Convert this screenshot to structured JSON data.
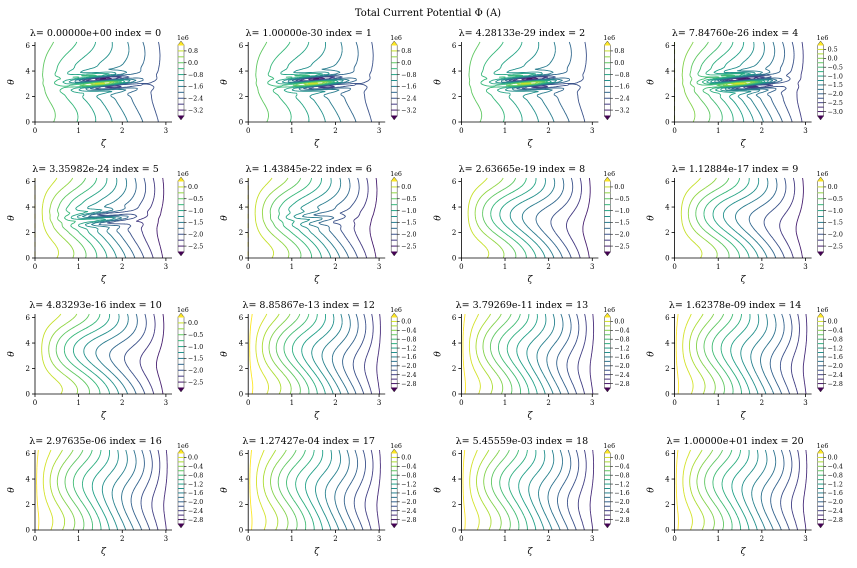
{
  "suptitle": "Total Current Potential Φ (A)",
  "chart_data": [
    {
      "type": "contour",
      "title": "λ=  0.00000e+00 index = 0",
      "xlabel": "ζ",
      "ylabel": "θ",
      "xlim": [
        0,
        3.14
      ],
      "ylim": [
        0,
        6.28
      ],
      "xticks": [
        0,
        1,
        2,
        3
      ],
      "yticks": [
        0,
        2,
        4,
        6
      ],
      "colorbar_scale": "1e6",
      "colorbar_ticks": [
        0.8,
        0.0,
        -0.8,
        -1.6,
        -2.4,
        -3.2
      ]
    },
    {
      "type": "contour",
      "title": "λ=  1.00000e-30 index = 1",
      "xlabel": "ζ",
      "ylabel": "θ",
      "xlim": [
        0,
        3.14
      ],
      "ylim": [
        0,
        6.28
      ],
      "xticks": [
        0,
        1,
        2,
        3
      ],
      "yticks": [
        0,
        2,
        4,
        6
      ],
      "colorbar_scale": "1e6",
      "colorbar_ticks": [
        0.8,
        0.0,
        -0.8,
        -1.6,
        -2.4,
        -3.2
      ]
    },
    {
      "type": "contour",
      "title": "λ=  4.28133e-29 index = 2",
      "xlabel": "ζ",
      "ylabel": "θ",
      "xlim": [
        0,
        3.14
      ],
      "ylim": [
        0,
        6.28
      ],
      "xticks": [
        0,
        1,
        2,
        3
      ],
      "yticks": [
        0,
        2,
        4,
        6
      ],
      "colorbar_scale": "1e6",
      "colorbar_ticks": [
        0.8,
        0.0,
        -0.8,
        -1.6,
        -2.4,
        -3.2
      ]
    },
    {
      "type": "contour",
      "title": "λ=  7.84760e-26 index = 4",
      "xlabel": "ζ",
      "ylabel": "θ",
      "xlim": [
        0,
        3.14
      ],
      "ylim": [
        0,
        6.28
      ],
      "xticks": [
        0,
        1,
        2,
        3
      ],
      "yticks": [
        0,
        2,
        4,
        6
      ],
      "colorbar_scale": "1e6",
      "colorbar_ticks": [
        0.5,
        0.0,
        -0.5,
        -1.0,
        -1.5,
        -2.0,
        -2.5,
        -3.0
      ]
    },
    {
      "type": "contour",
      "title": "λ=  3.35982e-24 index = 5",
      "xlabel": "ζ",
      "ylabel": "θ",
      "xlim": [
        0,
        3.14
      ],
      "ylim": [
        0,
        6.28
      ],
      "xticks": [
        0,
        1,
        2,
        3
      ],
      "yticks": [
        0,
        2,
        4,
        6
      ],
      "colorbar_scale": "1e6",
      "colorbar_ticks": [
        0.0,
        -0.5,
        -1.0,
        -1.5,
        -2.0,
        -2.5
      ]
    },
    {
      "type": "contour",
      "title": "λ=  1.43845e-22 index = 6",
      "xlabel": "ζ",
      "ylabel": "θ",
      "xlim": [
        0,
        3.14
      ],
      "ylim": [
        0,
        6.28
      ],
      "xticks": [
        0,
        1,
        2,
        3
      ],
      "yticks": [
        0,
        2,
        4,
        6
      ],
      "colorbar_scale": "1e6",
      "colorbar_ticks": [
        0.0,
        -0.5,
        -1.0,
        -1.5,
        -2.0,
        -2.5
      ]
    },
    {
      "type": "contour",
      "title": "λ=  2.63665e-19 index = 8",
      "xlabel": "ζ",
      "ylabel": "θ",
      "xlim": [
        0,
        3.14
      ],
      "ylim": [
        0,
        6.28
      ],
      "xticks": [
        0,
        1,
        2,
        3
      ],
      "yticks": [
        0,
        2,
        4,
        6
      ],
      "colorbar_scale": "1e6",
      "colorbar_ticks": [
        0.0,
        -0.5,
        -1.0,
        -1.5,
        -2.0,
        -2.5
      ]
    },
    {
      "type": "contour",
      "title": "λ=  1.12884e-17 index = 9",
      "xlabel": "ζ",
      "ylabel": "θ",
      "xlim": [
        0,
        3.14
      ],
      "ylim": [
        0,
        6.28
      ],
      "xticks": [
        0,
        1,
        2,
        3
      ],
      "yticks": [
        0,
        2,
        4,
        6
      ],
      "colorbar_scale": "1e6",
      "colorbar_ticks": [
        0.0,
        -0.5,
        -1.0,
        -1.5,
        -2.0,
        -2.5
      ]
    },
    {
      "type": "contour",
      "title": "λ=  4.83293e-16 index = 10",
      "xlabel": "ζ",
      "ylabel": "θ",
      "xlim": [
        0,
        3.14
      ],
      "ylim": [
        0,
        6.28
      ],
      "xticks": [
        0,
        1,
        2,
        3
      ],
      "yticks": [
        0,
        2,
        4,
        6
      ],
      "colorbar_scale": "1e6",
      "colorbar_ticks": [
        0.0,
        -0.5,
        -1.0,
        -1.5,
        -2.0,
        -2.5
      ]
    },
    {
      "type": "contour",
      "title": "λ=  8.85867e-13 index = 12",
      "xlabel": "ζ",
      "ylabel": "θ",
      "xlim": [
        0,
        3.14
      ],
      "ylim": [
        0,
        6.28
      ],
      "xticks": [
        0,
        1,
        2,
        3
      ],
      "yticks": [
        0,
        2,
        4,
        6
      ],
      "colorbar_scale": "1e6",
      "colorbar_ticks": [
        0.0,
        -0.4,
        -0.8,
        -1.2,
        -1.6,
        -2.0,
        -2.4,
        -2.8
      ]
    },
    {
      "type": "contour",
      "title": "λ=  3.79269e-11 index = 13",
      "xlabel": "ζ",
      "ylabel": "θ",
      "xlim": [
        0,
        3.14
      ],
      "ylim": [
        0,
        6.28
      ],
      "xticks": [
        0,
        1,
        2,
        3
      ],
      "yticks": [
        0,
        2,
        4,
        6
      ],
      "colorbar_scale": "1e6",
      "colorbar_ticks": [
        0.0,
        -0.4,
        -0.8,
        -1.2,
        -1.6,
        -2.0,
        -2.4,
        -2.8
      ]
    },
    {
      "type": "contour",
      "title": "λ=  1.62378e-09 index = 14",
      "xlabel": "ζ",
      "ylabel": "θ",
      "xlim": [
        0,
        3.14
      ],
      "ylim": [
        0,
        6.28
      ],
      "xticks": [
        0,
        1,
        2,
        3
      ],
      "yticks": [
        0,
        2,
        4,
        6
      ],
      "colorbar_scale": "1e6",
      "colorbar_ticks": [
        0.0,
        -0.4,
        -0.8,
        -1.2,
        -1.6,
        -2.0,
        -2.4,
        -2.8
      ]
    },
    {
      "type": "contour",
      "title": "λ=  2.97635e-06 index = 16",
      "xlabel": "ζ",
      "ylabel": "θ",
      "xlim": [
        0,
        3.14
      ],
      "ylim": [
        0,
        6.28
      ],
      "xticks": [
        0,
        1,
        2,
        3
      ],
      "yticks": [
        0,
        2,
        4,
        6
      ],
      "colorbar_scale": "1e6",
      "colorbar_ticks": [
        0.0,
        -0.4,
        -0.8,
        -1.2,
        -1.6,
        -2.0,
        -2.4,
        -2.8
      ]
    },
    {
      "type": "contour",
      "title": "λ=  1.27427e-04 index = 17",
      "xlabel": "ζ",
      "ylabel": "θ",
      "xlim": [
        0,
        3.14
      ],
      "ylim": [
        0,
        6.28
      ],
      "xticks": [
        0,
        1,
        2,
        3
      ],
      "yticks": [
        0,
        2,
        4,
        6
      ],
      "colorbar_scale": "1e6",
      "colorbar_ticks": [
        0.0,
        -0.4,
        -0.8,
        -1.2,
        -1.6,
        -2.0,
        -2.4,
        -2.8
      ]
    },
    {
      "type": "contour",
      "title": "λ=  5.45559e-03 index = 18",
      "xlabel": "ζ",
      "ylabel": "θ",
      "xlim": [
        0,
        3.14
      ],
      "ylim": [
        0,
        6.28
      ],
      "xticks": [
        0,
        1,
        2,
        3
      ],
      "yticks": [
        0,
        2,
        4,
        6
      ],
      "colorbar_scale": "1e6",
      "colorbar_ticks": [
        0.0,
        -0.4,
        -0.8,
        -1.2,
        -1.6,
        -2.0,
        -2.4,
        -2.8
      ]
    },
    {
      "type": "contour",
      "title": "λ=  1.00000e+01 index = 20",
      "xlabel": "ζ",
      "ylabel": "θ",
      "xlim": [
        0,
        3.14
      ],
      "ylim": [
        0,
        6.28
      ],
      "xticks": [
        0,
        1,
        2,
        3
      ],
      "yticks": [
        0,
        2,
        4,
        6
      ],
      "colorbar_scale": "1e6",
      "colorbar_ticks": [
        0.0,
        -0.4,
        -0.8,
        -1.2,
        -1.6,
        -2.0,
        -2.4,
        -2.8
      ]
    }
  ]
}
